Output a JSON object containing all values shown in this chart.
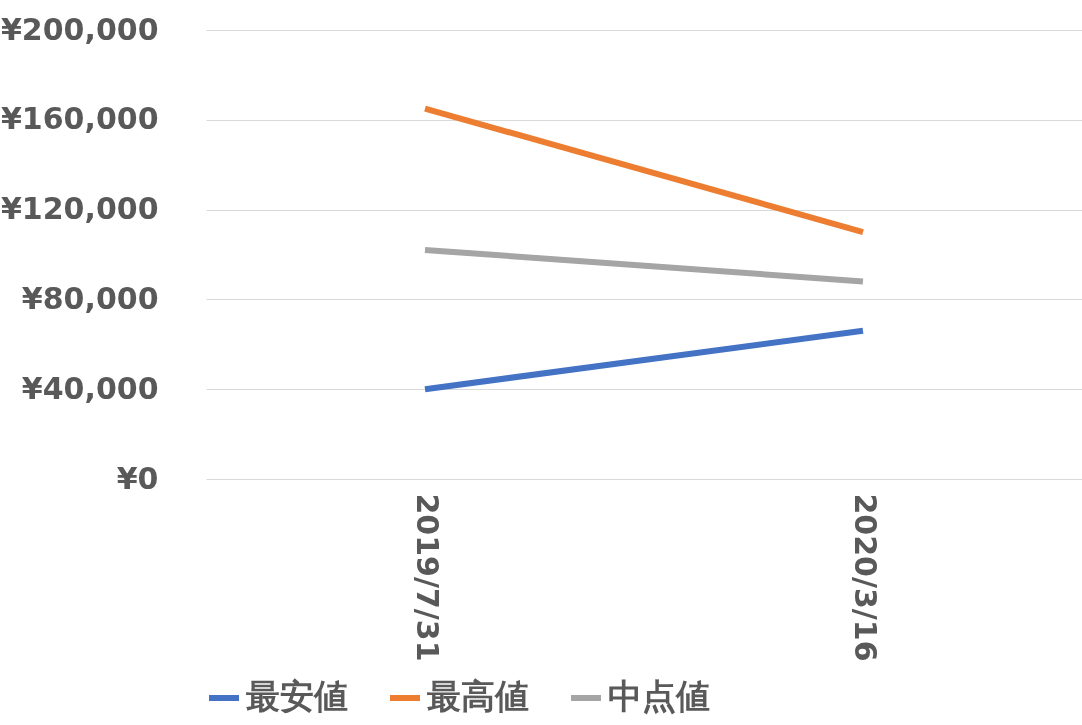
{
  "chart_data": {
    "type": "line",
    "categories": [
      "2019/7/31",
      "2020/3/16"
    ],
    "series": [
      {
        "name": "最安値",
        "color": "#4472c4",
        "values": [
          40000,
          66000
        ]
      },
      {
        "name": "最高値",
        "color": "#ed7d31",
        "values": [
          165000,
          110000
        ]
      },
      {
        "name": "中点値",
        "color": "#a5a5a5",
        "values": [
          102000,
          88000
        ]
      }
    ],
    "ylim": [
      0,
      200000
    ],
    "yticks": [
      {
        "value": 0,
        "label": "¥0"
      },
      {
        "value": 40000,
        "label": "¥40,000"
      },
      {
        "value": 80000,
        "label": "¥80,000"
      },
      {
        "value": 120000,
        "label": "¥120,000"
      },
      {
        "value": 160000,
        "label": "¥160,000"
      },
      {
        "value": 200000,
        "label": "¥200,000"
      }
    ],
    "grid": "y",
    "legend": "bottom",
    "marker": "none",
    "line_style": "solid"
  }
}
